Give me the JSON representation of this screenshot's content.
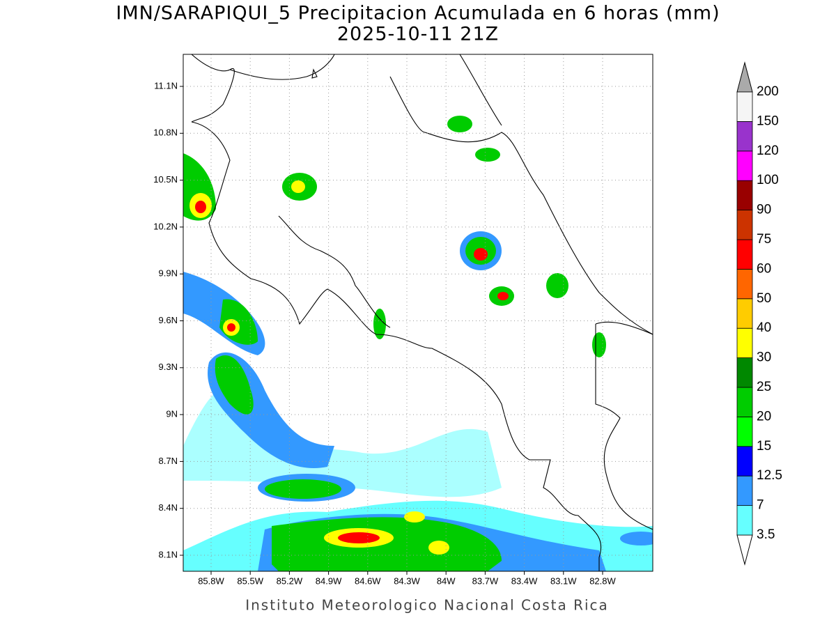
{
  "title": "IMN/SARAPIQUI_5 Precipitacion Acumulada en 6 horas (mm)",
  "subtitle": "2025-10-11 21Z",
  "footer": "Instituto Meteorologico Nacional Costa Rica",
  "map": {
    "lat_ticks": [
      "11.1N",
      "10.8N",
      "10.5N",
      "10.2N",
      "9.9N",
      "9.6N",
      "9.3N",
      "9N",
      "8.7N",
      "8.4N",
      "8.1N"
    ],
    "lon_ticks": [
      "85.8W",
      "85.5W",
      "85.2W",
      "84.9W",
      "84.6W",
      "84.3W",
      "84W",
      "83.7W",
      "83.4W",
      "83.1W",
      "82.8W"
    ],
    "grid": true
  },
  "colorbar": {
    "levels": [
      3.5,
      7,
      12.5,
      15,
      20,
      25,
      30,
      40,
      50,
      60,
      75,
      90,
      100,
      120,
      150,
      200
    ],
    "colors": [
      "#66ffff",
      "#3399ff",
      "#0000ff",
      "#00ff00",
      "#00cc00",
      "#008800",
      "#ffff00",
      "#ffcc00",
      "#ff6600",
      "#ff0000",
      "#cc3300",
      "#990000",
      "#ff00ff",
      "#9933cc",
      "#f5f5f5"
    ],
    "under_color": "#ffffff",
    "over_color": "#aaaaaa"
  }
}
